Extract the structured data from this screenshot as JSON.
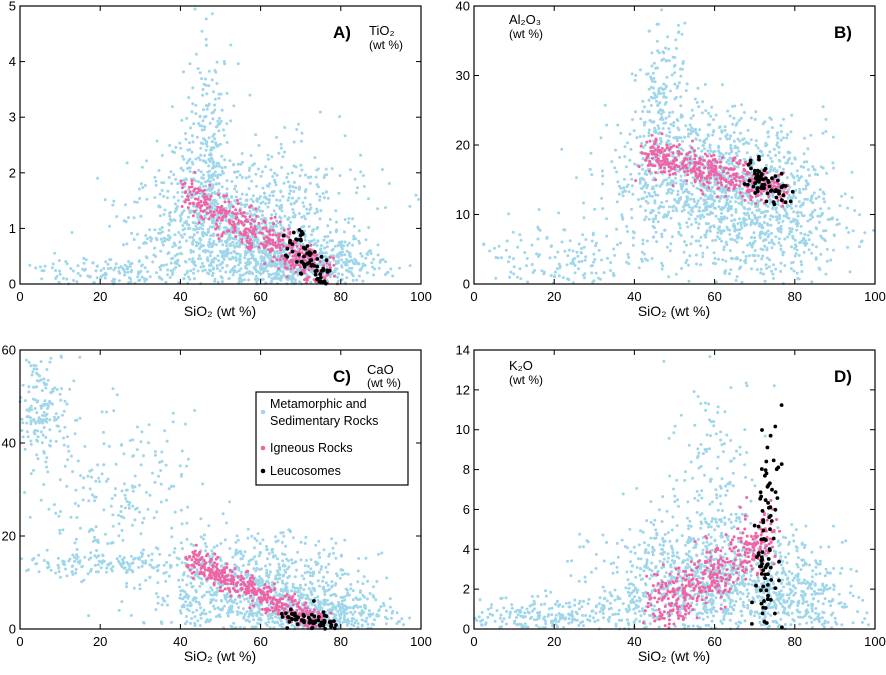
{
  "chart_data": [
    {
      "id": "A",
      "type": "scatter",
      "panel_label": "A)",
      "title": "TiO₂",
      "units": "(wt %)",
      "xlabel": "SiO₂ (wt %)",
      "xlim": [
        0,
        100
      ],
      "ylim": [
        0,
        5
      ],
      "xticks": [
        0,
        20,
        40,
        60,
        80,
        100
      ],
      "yticks": [
        0,
        1,
        2,
        3,
        4,
        5
      ],
      "series": [
        {
          "id": "meta",
          "color": "#9fd6ea",
          "clusters": [
            {
              "cx": 52,
              "cy": 1.0,
              "sx": 12,
              "sy": 0.55,
              "n": 900
            },
            {
              "cx": 47,
              "cy": 2.4,
              "sx": 3,
              "sy": 0.9,
              "n": 220
            },
            {
              "cx": 70,
              "cy": 0.35,
              "sx": 10,
              "sy": 0.25,
              "n": 650
            },
            {
              "cx": 22,
              "cy": 0.2,
              "sx": 12,
              "sy": 0.15,
              "n": 160
            },
            {
              "cx": 60,
              "cy": 1.6,
              "sx": 15,
              "sy": 0.8,
              "n": 180
            }
          ]
        },
        {
          "id": "ign",
          "color": "#f064a6",
          "trend": {
            "x0": 42,
            "x1": 77,
            "y0": 1.6,
            "y1": 0.15,
            "spread": 0.18,
            "n": 420
          }
        },
        {
          "id": "leu",
          "color": "#000000",
          "trend": {
            "x0": 67,
            "x1": 77,
            "y0": 0.8,
            "y1": 0.05,
            "spread": 0.14,
            "n": 70
          }
        }
      ]
    },
    {
      "id": "B",
      "type": "scatter",
      "panel_label": "B)",
      "title": "Al₂O₃",
      "units": "(wt %)",
      "xlabel": "SiO₂ (wt %)",
      "xlim": [
        0,
        100
      ],
      "ylim": [
        0,
        40
      ],
      "xticks": [
        0,
        20,
        40,
        60,
        80,
        100
      ],
      "yticks": [
        0,
        10,
        20,
        30,
        40
      ],
      "series": [
        {
          "id": "meta",
          "color": "#9fd6ea",
          "clusters": [
            {
              "cx": 58,
              "cy": 15,
              "sx": 12,
              "sy": 5,
              "n": 1000
            },
            {
              "cx": 47,
              "cy": 27,
              "sx": 3,
              "sy": 5,
              "n": 150
            },
            {
              "cx": 75,
              "cy": 9,
              "sx": 10,
              "sy": 5,
              "n": 500
            },
            {
              "cx": 22,
              "cy": 3,
              "sx": 12,
              "sy": 3,
              "n": 200
            }
          ]
        },
        {
          "id": "ign",
          "color": "#f064a6",
          "trend": {
            "x0": 43,
            "x1": 77,
            "y0": 18.5,
            "y1": 13.5,
            "spread": 1.3,
            "n": 420
          }
        },
        {
          "id": "leu",
          "color": "#000000",
          "trend": {
            "x0": 69,
            "x1": 77,
            "y0": 16,
            "y1": 12.5,
            "spread": 1.2,
            "n": 70
          }
        }
      ]
    },
    {
      "id": "C",
      "type": "scatter",
      "panel_label": "C)",
      "title": "CaO",
      "units": "(wt %)",
      "xlabel": "SiO₂ (wt %)",
      "xlim": [
        0,
        100
      ],
      "ylim": [
        0,
        60
      ],
      "xticks": [
        0,
        20,
        40,
        60,
        80,
        100
      ],
      "yticks": [
        0,
        20,
        40,
        60
      ],
      "series": [
        {
          "id": "meta",
          "color": "#9fd6ea",
          "clusters": [
            {
              "cx": 58,
              "cy": 8,
              "sx": 13,
              "sy": 6,
              "n": 900
            },
            {
              "cx": 5,
              "cy": 48,
              "sx": 4,
              "sy": 6,
              "n": 180
            },
            {
              "cx": 25,
              "cy": 28,
              "sx": 10,
              "sy": 9,
              "n": 200
            },
            {
              "cx": 75,
              "cy": 3,
              "sx": 9,
              "sy": 2.5,
              "n": 450
            },
            {
              "cx": 20,
              "cy": 14,
              "sx": 12,
              "sy": 1.2,
              "n": 140
            }
          ]
        },
        {
          "id": "ign",
          "color": "#f064a6",
          "trend": {
            "x0": 42,
            "x1": 76,
            "y0": 15,
            "y1": 0.8,
            "spread": 1.4,
            "n": 420
          }
        },
        {
          "id": "leu",
          "color": "#000000",
          "trend": {
            "x0": 66,
            "x1": 78,
            "y0": 3.5,
            "y1": 0.3,
            "spread": 0.9,
            "n": 70
          }
        }
      ],
      "legend": {
        "position": "upper-right",
        "entries": [
          {
            "label_lines": [
              "Metamorphic and",
              "Sedimentary Rocks"
            ],
            "color": "#9fd6ea"
          },
          {
            "label_lines": [
              "Igneous Rocks"
            ],
            "color": "#f064a6"
          },
          {
            "label_lines": [
              "Leucosomes"
            ],
            "color": "#000000"
          }
        ]
      }
    },
    {
      "id": "D",
      "type": "scatter",
      "panel_label": "D)",
      "title": "K₂O",
      "units": "(wt %)",
      "xlabel": "SiO₂ (wt %)",
      "xlim": [
        0,
        100
      ],
      "ylim": [
        0,
        14
      ],
      "xticks": [
        0,
        20,
        40,
        60,
        80,
        100
      ],
      "yticks": [
        0,
        2,
        4,
        6,
        8,
        10,
        12,
        14
      ],
      "series": [
        {
          "id": "meta",
          "color": "#9fd6ea",
          "clusters": [
            {
              "cx": 58,
              "cy": 2.2,
              "sx": 14,
              "sy": 1.6,
              "n": 1000
            },
            {
              "cx": 60,
              "cy": 7,
              "sx": 6,
              "sy": 3,
              "n": 180
            },
            {
              "cx": 20,
              "cy": 0.6,
              "sx": 12,
              "sy": 0.5,
              "n": 250
            },
            {
              "cx": 80,
              "cy": 1.2,
              "sx": 8,
              "sy": 1.2,
              "n": 300
            }
          ]
        },
        {
          "id": "ign",
          "color": "#f064a6",
          "trend": {
            "x0": 44,
            "x1": 75,
            "y0": 0.8,
            "y1": 4.8,
            "spread": 0.8,
            "n": 420
          }
        },
        {
          "id": "leu",
          "color": "#000000",
          "trend": {
            "x0": 72,
            "x1": 74,
            "y0": 1.0,
            "y1": 7.0,
            "spread": 2.2,
            "n": 90
          }
        }
      ]
    }
  ]
}
